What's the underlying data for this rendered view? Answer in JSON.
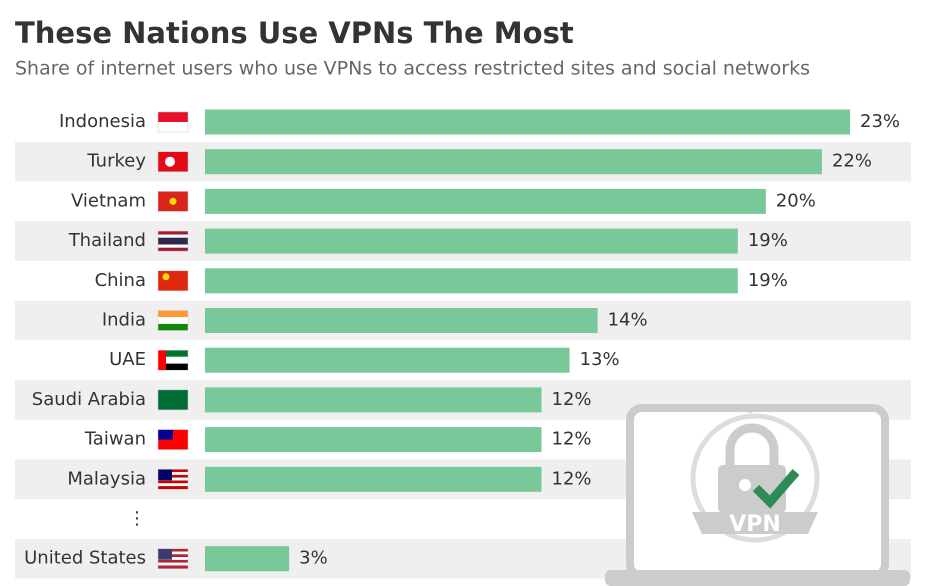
{
  "chart_data": {
    "type": "bar",
    "orientation": "horizontal",
    "title": "These Nations Use VPNs The Most",
    "subtitle": "Share of internet users who use VPNs to access restricted sites and social networks",
    "categories": [
      "Indonesia",
      "Turkey",
      "Vietnam",
      "Thailand",
      "China",
      "India",
      "UAE",
      "Saudi Arabia",
      "Taiwan",
      "Malaysia",
      "⋮",
      "United States"
    ],
    "values": [
      23,
      22,
      20,
      19,
      19,
      14,
      13,
      12,
      12,
      12,
      null,
      3
    ],
    "value_labels": [
      "23%",
      "22%",
      "20%",
      "19%",
      "19%",
      "14%",
      "13%",
      "12%",
      "12%",
      "12%",
      null,
      "3%"
    ],
    "color": "#78c89a",
    "annotation": "VPN"
  }
}
